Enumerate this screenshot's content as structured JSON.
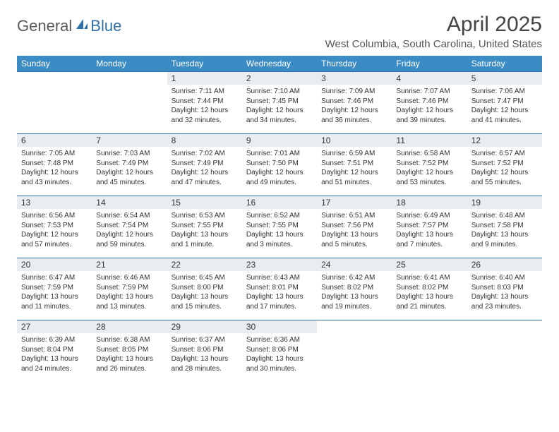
{
  "logo": {
    "general": "General",
    "blue": "Blue"
  },
  "title": "April 2025",
  "location": "West Columbia, South Carolina, United States",
  "colors": {
    "header_bg": "#3b8bc4",
    "header_text": "#ffffff",
    "row_border": "#2f6fa8",
    "daynum_bg": "#e9edf0",
    "text": "#333333",
    "logo_gray": "#5a5a5a",
    "logo_blue": "#2f6fa8",
    "background": "#ffffff"
  },
  "dayNames": [
    "Sunday",
    "Monday",
    "Tuesday",
    "Wednesday",
    "Thursday",
    "Friday",
    "Saturday"
  ],
  "weeks": [
    [
      {
        "empty": true
      },
      {
        "empty": true
      },
      {
        "num": "1",
        "sunrise": "Sunrise: 7:11 AM",
        "sunset": "Sunset: 7:44 PM",
        "daylight": "Daylight: 12 hours and 32 minutes."
      },
      {
        "num": "2",
        "sunrise": "Sunrise: 7:10 AM",
        "sunset": "Sunset: 7:45 PM",
        "daylight": "Daylight: 12 hours and 34 minutes."
      },
      {
        "num": "3",
        "sunrise": "Sunrise: 7:09 AM",
        "sunset": "Sunset: 7:46 PM",
        "daylight": "Daylight: 12 hours and 36 minutes."
      },
      {
        "num": "4",
        "sunrise": "Sunrise: 7:07 AM",
        "sunset": "Sunset: 7:46 PM",
        "daylight": "Daylight: 12 hours and 39 minutes."
      },
      {
        "num": "5",
        "sunrise": "Sunrise: 7:06 AM",
        "sunset": "Sunset: 7:47 PM",
        "daylight": "Daylight: 12 hours and 41 minutes."
      }
    ],
    [
      {
        "num": "6",
        "sunrise": "Sunrise: 7:05 AM",
        "sunset": "Sunset: 7:48 PM",
        "daylight": "Daylight: 12 hours and 43 minutes."
      },
      {
        "num": "7",
        "sunrise": "Sunrise: 7:03 AM",
        "sunset": "Sunset: 7:49 PM",
        "daylight": "Daylight: 12 hours and 45 minutes."
      },
      {
        "num": "8",
        "sunrise": "Sunrise: 7:02 AM",
        "sunset": "Sunset: 7:49 PM",
        "daylight": "Daylight: 12 hours and 47 minutes."
      },
      {
        "num": "9",
        "sunrise": "Sunrise: 7:01 AM",
        "sunset": "Sunset: 7:50 PM",
        "daylight": "Daylight: 12 hours and 49 minutes."
      },
      {
        "num": "10",
        "sunrise": "Sunrise: 6:59 AM",
        "sunset": "Sunset: 7:51 PM",
        "daylight": "Daylight: 12 hours and 51 minutes."
      },
      {
        "num": "11",
        "sunrise": "Sunrise: 6:58 AM",
        "sunset": "Sunset: 7:52 PM",
        "daylight": "Daylight: 12 hours and 53 minutes."
      },
      {
        "num": "12",
        "sunrise": "Sunrise: 6:57 AM",
        "sunset": "Sunset: 7:52 PM",
        "daylight": "Daylight: 12 hours and 55 minutes."
      }
    ],
    [
      {
        "num": "13",
        "sunrise": "Sunrise: 6:56 AM",
        "sunset": "Sunset: 7:53 PM",
        "daylight": "Daylight: 12 hours and 57 minutes."
      },
      {
        "num": "14",
        "sunrise": "Sunrise: 6:54 AM",
        "sunset": "Sunset: 7:54 PM",
        "daylight": "Daylight: 12 hours and 59 minutes."
      },
      {
        "num": "15",
        "sunrise": "Sunrise: 6:53 AM",
        "sunset": "Sunset: 7:55 PM",
        "daylight": "Daylight: 13 hours and 1 minute."
      },
      {
        "num": "16",
        "sunrise": "Sunrise: 6:52 AM",
        "sunset": "Sunset: 7:55 PM",
        "daylight": "Daylight: 13 hours and 3 minutes."
      },
      {
        "num": "17",
        "sunrise": "Sunrise: 6:51 AM",
        "sunset": "Sunset: 7:56 PM",
        "daylight": "Daylight: 13 hours and 5 minutes."
      },
      {
        "num": "18",
        "sunrise": "Sunrise: 6:49 AM",
        "sunset": "Sunset: 7:57 PM",
        "daylight": "Daylight: 13 hours and 7 minutes."
      },
      {
        "num": "19",
        "sunrise": "Sunrise: 6:48 AM",
        "sunset": "Sunset: 7:58 PM",
        "daylight": "Daylight: 13 hours and 9 minutes."
      }
    ],
    [
      {
        "num": "20",
        "sunrise": "Sunrise: 6:47 AM",
        "sunset": "Sunset: 7:59 PM",
        "daylight": "Daylight: 13 hours and 11 minutes."
      },
      {
        "num": "21",
        "sunrise": "Sunrise: 6:46 AM",
        "sunset": "Sunset: 7:59 PM",
        "daylight": "Daylight: 13 hours and 13 minutes."
      },
      {
        "num": "22",
        "sunrise": "Sunrise: 6:45 AM",
        "sunset": "Sunset: 8:00 PM",
        "daylight": "Daylight: 13 hours and 15 minutes."
      },
      {
        "num": "23",
        "sunrise": "Sunrise: 6:43 AM",
        "sunset": "Sunset: 8:01 PM",
        "daylight": "Daylight: 13 hours and 17 minutes."
      },
      {
        "num": "24",
        "sunrise": "Sunrise: 6:42 AM",
        "sunset": "Sunset: 8:02 PM",
        "daylight": "Daylight: 13 hours and 19 minutes."
      },
      {
        "num": "25",
        "sunrise": "Sunrise: 6:41 AM",
        "sunset": "Sunset: 8:02 PM",
        "daylight": "Daylight: 13 hours and 21 minutes."
      },
      {
        "num": "26",
        "sunrise": "Sunrise: 6:40 AM",
        "sunset": "Sunset: 8:03 PM",
        "daylight": "Daylight: 13 hours and 23 minutes."
      }
    ],
    [
      {
        "num": "27",
        "sunrise": "Sunrise: 6:39 AM",
        "sunset": "Sunset: 8:04 PM",
        "daylight": "Daylight: 13 hours and 24 minutes."
      },
      {
        "num": "28",
        "sunrise": "Sunrise: 6:38 AM",
        "sunset": "Sunset: 8:05 PM",
        "daylight": "Daylight: 13 hours and 26 minutes."
      },
      {
        "num": "29",
        "sunrise": "Sunrise: 6:37 AM",
        "sunset": "Sunset: 8:06 PM",
        "daylight": "Daylight: 13 hours and 28 minutes."
      },
      {
        "num": "30",
        "sunrise": "Sunrise: 6:36 AM",
        "sunset": "Sunset: 8:06 PM",
        "daylight": "Daylight: 13 hours and 30 minutes."
      },
      {
        "empty": true
      },
      {
        "empty": true
      },
      {
        "empty": true
      }
    ]
  ]
}
